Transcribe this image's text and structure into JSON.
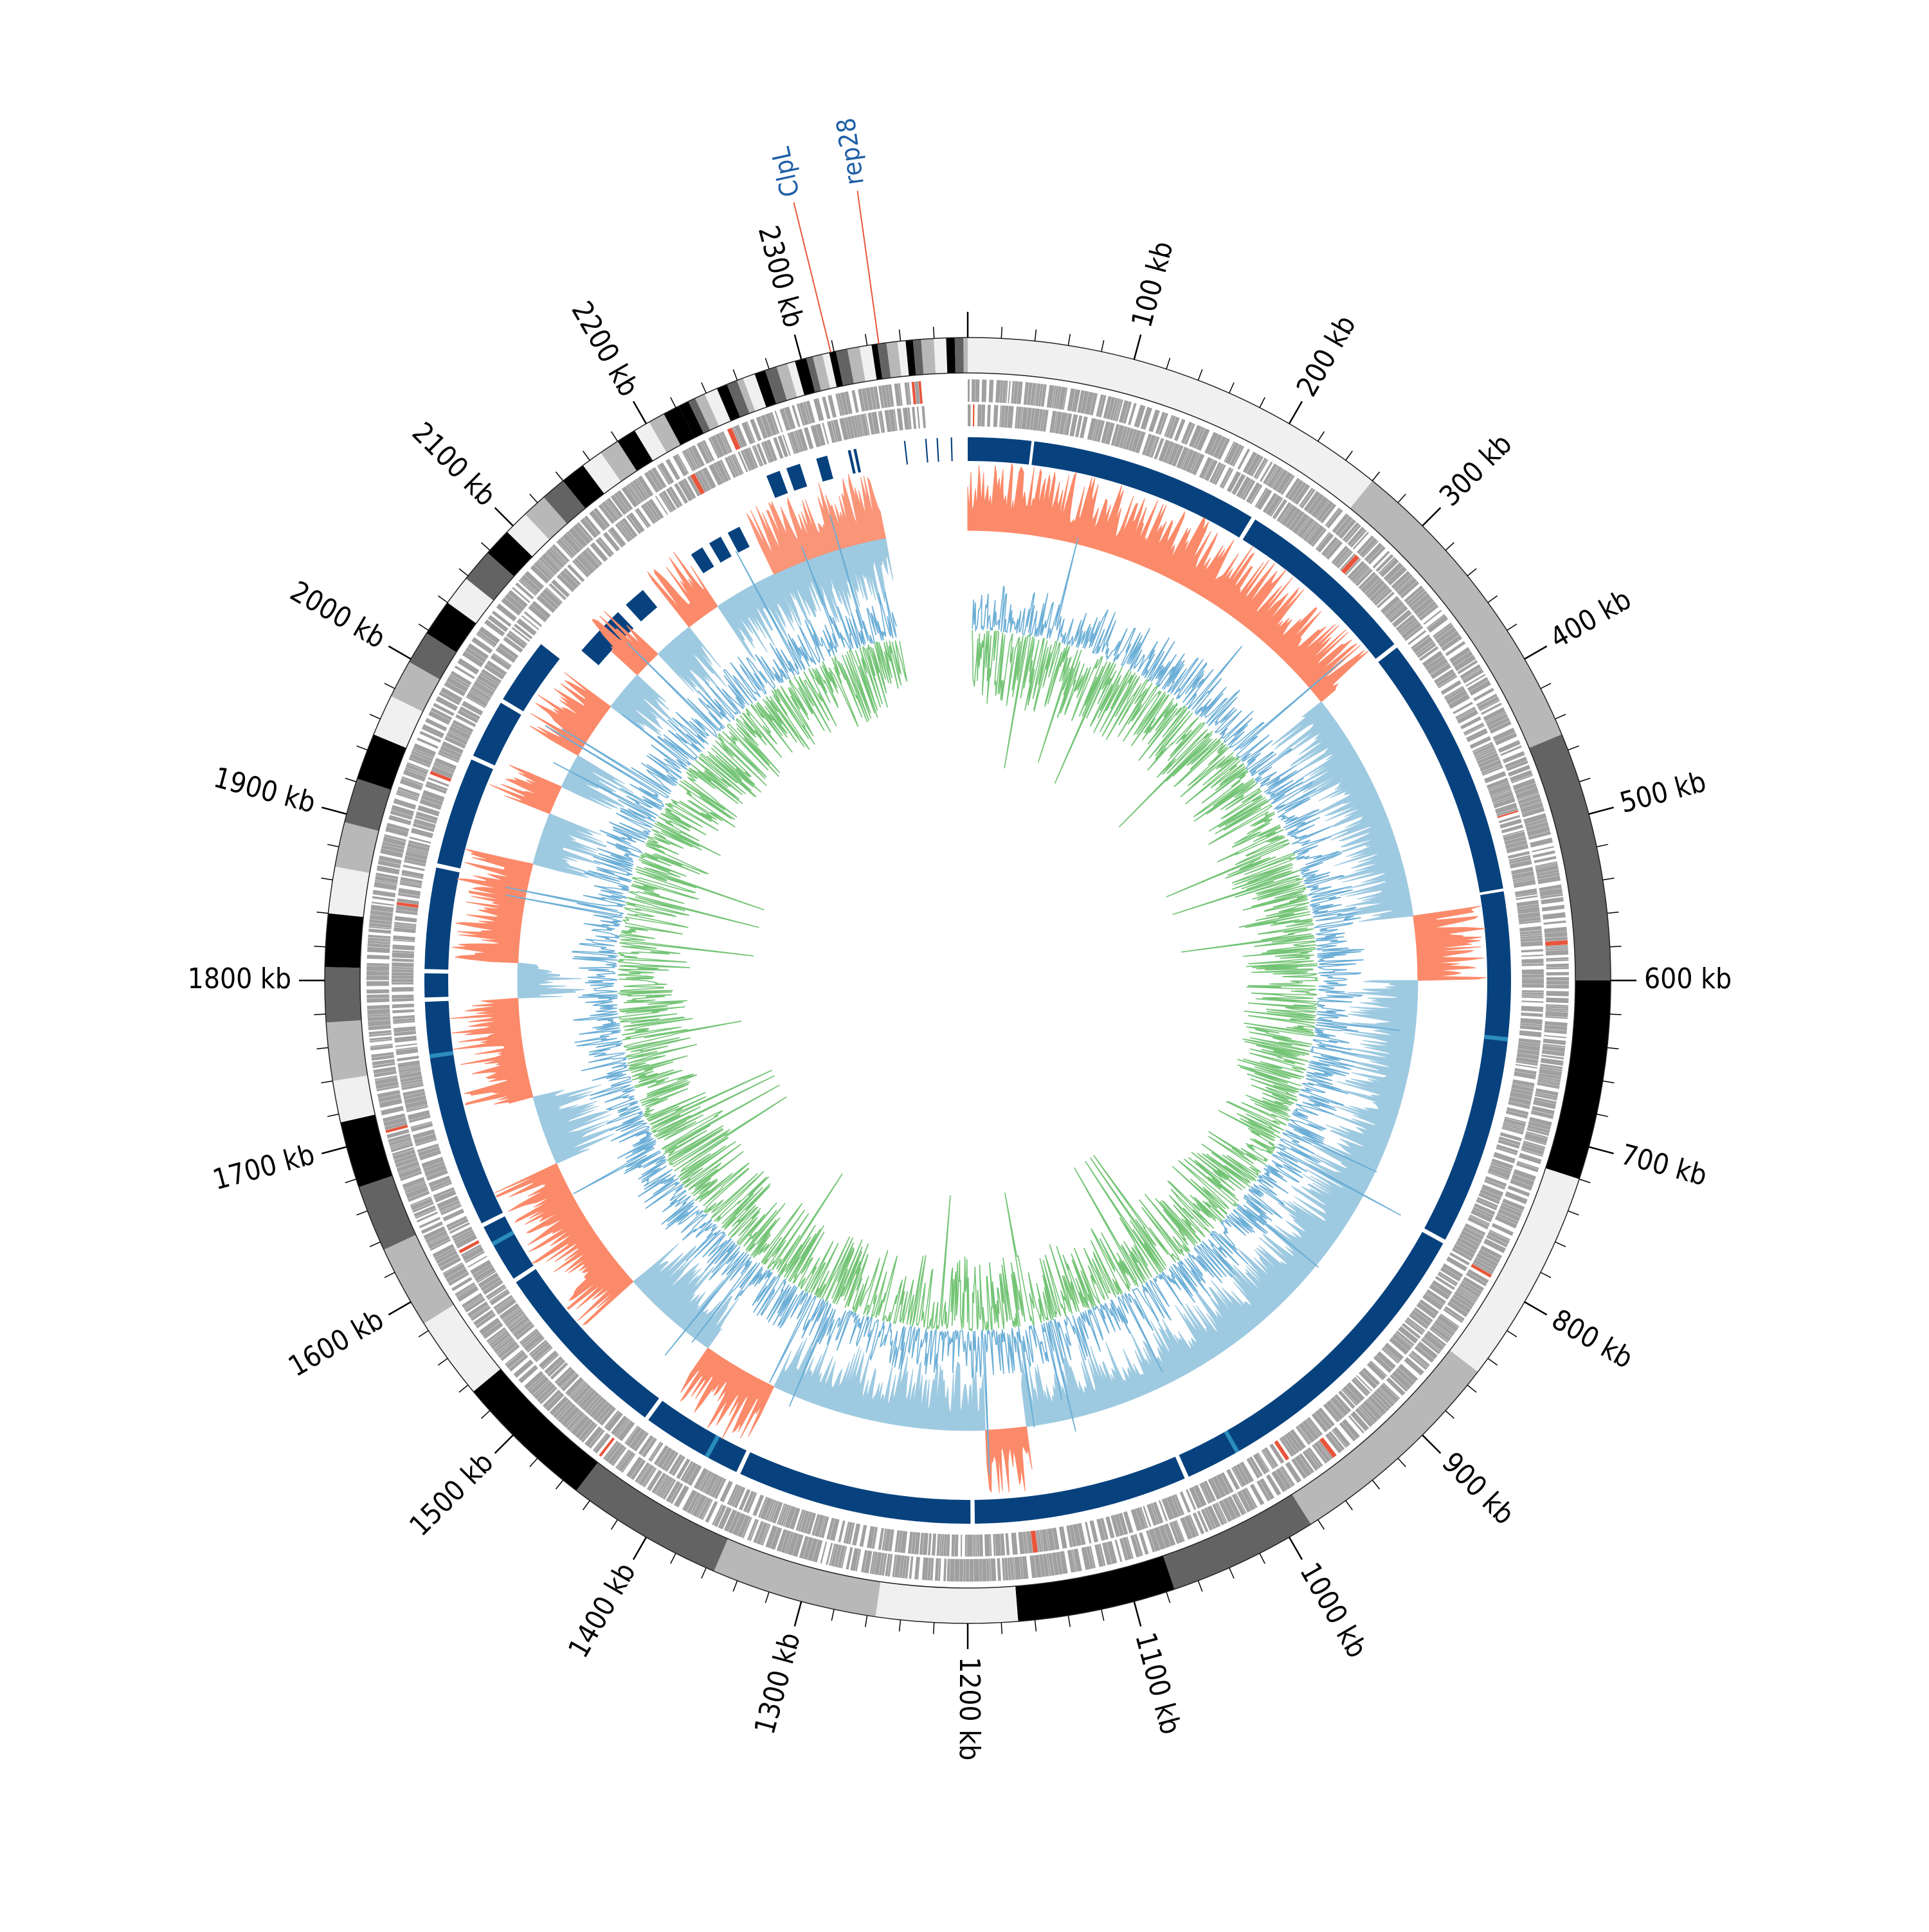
{
  "chart_data": {
    "type": "circos",
    "genome_length_kb": 2400,
    "tick_labels": [
      {
        "kb": 100,
        "label": "100 kb"
      },
      {
        "kb": 200,
        "label": "200 kb"
      },
      {
        "kb": 300,
        "label": "300 kb"
      },
      {
        "kb": 400,
        "label": "400 kb"
      },
      {
        "kb": 500,
        "label": "500 kb"
      },
      {
        "kb": 600,
        "label": "600 kb"
      },
      {
        "kb": 700,
        "label": "700 kb"
      },
      {
        "kb": 800,
        "label": "800 kb"
      },
      {
        "kb": 900,
        "label": "900 kb"
      },
      {
        "kb": 1000,
        "label": "1000 kb"
      },
      {
        "kb": 1100,
        "label": "1100 kb"
      },
      {
        "kb": 1200,
        "label": "1200 kb"
      },
      {
        "kb": 1300,
        "label": "1300 kb"
      },
      {
        "kb": 1400,
        "label": "1400 kb"
      },
      {
        "kb": 1500,
        "label": "1500 kb"
      },
      {
        "kb": 1600,
        "label": "1600 kb"
      },
      {
        "kb": 1700,
        "label": "1700 kb"
      },
      {
        "kb": 1800,
        "label": "1800 kb"
      },
      {
        "kb": 1900,
        "label": "1900 kb"
      },
      {
        "kb": 2000,
        "label": "2000 kb"
      },
      {
        "kb": 2100,
        "label": "2100 kb"
      },
      {
        "kb": 2200,
        "label": "2200 kb"
      },
      {
        "kb": 2300,
        "label": "2300 kb"
      }
    ],
    "ideogram_bands": [
      {
        "start": 0,
        "end": 200,
        "color": "#f0f0f0"
      },
      {
        "start": 200,
        "end": 260,
        "color": "#f0f0f0"
      },
      {
        "start": 260,
        "end": 450,
        "color": "#b8b8b8"
      },
      {
        "start": 450,
        "end": 600,
        "color": "#636363"
      },
      {
        "start": 600,
        "end": 720,
        "color": "#000000"
      },
      {
        "start": 720,
        "end": 850,
        "color": "#f0f0f0"
      },
      {
        "start": 850,
        "end": 985,
        "color": "#b8b8b8"
      },
      {
        "start": 985,
        "end": 1075,
        "color": "#636363"
      },
      {
        "start": 1075,
        "end": 1170,
        "color": "#000000"
      },
      {
        "start": 1170,
        "end": 1255,
        "color": "#f0f0f0"
      },
      {
        "start": 1255,
        "end": 1355,
        "color": "#b8b8b8"
      },
      {
        "start": 1355,
        "end": 1450,
        "color": "#636363"
      },
      {
        "start": 1450,
        "end": 1535,
        "color": "#000000"
      },
      {
        "start": 1535,
        "end": 1585,
        "color": "#f0f0f0"
      },
      {
        "start": 1585,
        "end": 1635,
        "color": "#b8b8b8"
      },
      {
        "start": 1635,
        "end": 1675,
        "color": "#636363"
      },
      {
        "start": 1675,
        "end": 1715,
        "color": "#000000"
      },
      {
        "start": 1715,
        "end": 1740,
        "color": "#f0f0f0"
      },
      {
        "start": 1740,
        "end": 1775,
        "color": "#b8b8b8"
      },
      {
        "start": 1775,
        "end": 1808,
        "color": "#636363"
      },
      {
        "start": 1808,
        "end": 1840,
        "color": "#000000"
      },
      {
        "start": 1840,
        "end": 1868,
        "color": "#f0f0f0"
      },
      {
        "start": 1868,
        "end": 1895,
        "color": "#b8b8b8"
      },
      {
        "start": 1895,
        "end": 1922,
        "color": "#636363"
      },
      {
        "start": 1922,
        "end": 1950,
        "color": "#000000"
      },
      {
        "start": 1950,
        "end": 1975,
        "color": "#f0f0f0"
      },
      {
        "start": 1975,
        "end": 1998,
        "color": "#b8b8b8"
      },
      {
        "start": 1998,
        "end": 2018,
        "color": "#636363"
      },
      {
        "start": 2018,
        "end": 2040,
        "color": "#000000"
      },
      {
        "start": 2040,
        "end": 2058,
        "color": "#f0f0f0"
      },
      {
        "start": 2058,
        "end": 2078,
        "color": "#636363"
      },
      {
        "start": 2078,
        "end": 2095,
        "color": "#000000"
      },
      {
        "start": 2095,
        "end": 2110,
        "color": "#f0f0f0"
      },
      {
        "start": 2110,
        "end": 2125,
        "color": "#b8b8b8"
      },
      {
        "start": 2125,
        "end": 2140,
        "color": "#636363"
      },
      {
        "start": 2140,
        "end": 2155,
        "color": "#000000"
      },
      {
        "start": 2155,
        "end": 2168,
        "color": "#f0f0f0"
      },
      {
        "start": 2168,
        "end": 2180,
        "color": "#b8b8b8"
      },
      {
        "start": 2180,
        "end": 2192,
        "color": "#000000"
      },
      {
        "start": 2192,
        "end": 2202,
        "color": "#f0f0f0"
      },
      {
        "start": 2202,
        "end": 2212,
        "color": "#b8b8b8"
      },
      {
        "start": 2212,
        "end": 2222,
        "color": "#000000"
      }
    ],
    "ideogram_stripe_region": {
      "start": 2222,
      "end": 2400,
      "colors": [
        "#000000",
        "#636363",
        "#b8b8b8",
        "#f0f0f0"
      ]
    },
    "gene_label_marks": [
      {
        "kb": 2318,
        "label": "ClpL",
        "color": "#1f5fa6",
        "line_color": "#e8553c"
      },
      {
        "kb": 2347,
        "label": "rep28",
        "color": "#1f5fa6",
        "line_color": "#e8553c"
      }
    ],
    "alignment_blocks": [
      {
        "start": 0,
        "end": 45
      },
      {
        "start": 47,
        "end": 210
      },
      {
        "start": 213,
        "end": 345
      },
      {
        "start": 348,
        "end": 535
      },
      {
        "start": 537,
        "end": 790
      },
      {
        "start": 793,
        "end": 1040
      },
      {
        "start": 1043,
        "end": 1195
      },
      {
        "start": 1198,
        "end": 1365
      },
      {
        "start": 1368,
        "end": 1440
      },
      {
        "start": 1443,
        "end": 1575
      },
      {
        "start": 1578,
        "end": 1620
      },
      {
        "start": 1623,
        "end": 1785
      },
      {
        "start": 1788,
        "end": 1805
      },
      {
        "start": 1808,
        "end": 1880
      },
      {
        "start": 1883,
        "end": 1960
      },
      {
        "start": 1963,
        "end": 2005
      },
      {
        "start": 2008,
        "end": 2055
      }
    ],
    "alignment_blocks_outer_tail": [
      {
        "start": 2255,
        "end": 2265
      },
      {
        "start": 2270,
        "end": 2280
      },
      {
        "start": 2292,
        "end": 2300
      },
      {
        "start": 2315,
        "end": 2317
      },
      {
        "start": 2319,
        "end": 2321
      },
      {
        "start": 2355,
        "end": 2356
      },
      {
        "start": 2370,
        "end": 2371
      },
      {
        "start": 2378,
        "end": 2379
      },
      {
        "start": 2388,
        "end": 2389
      }
    ],
    "alignment_blocks_inner_tail": [
      {
        "start": 2070,
        "end": 2110
      },
      {
        "start": 2118,
        "end": 2135
      },
      {
        "start": 2180,
        "end": 2190
      },
      {
        "start": 2196,
        "end": 2206
      },
      {
        "start": 2212,
        "end": 2222
      }
    ],
    "skew_track": {
      "positive_color": "#fb8a6a",
      "negative_color": "#9ecae1",
      "segments": [
        {
          "start": 0,
          "end": 345,
          "sign": "positive"
        },
        {
          "start": 345,
          "end": 545,
          "sign": "negative"
        },
        {
          "start": 545,
          "end": 600,
          "sign": "positive"
        },
        {
          "start": 600,
          "end": 1150,
          "sign": "negative"
        },
        {
          "start": 1150,
          "end": 1185,
          "sign": "positive"
        },
        {
          "start": 1185,
          "end": 1370,
          "sign": "negative"
        },
        {
          "start": 1370,
          "end": 1435,
          "sign": "positive"
        },
        {
          "start": 1435,
          "end": 1520,
          "sign": "negative"
        },
        {
          "start": 1520,
          "end": 1640,
          "sign": "positive"
        },
        {
          "start": 1640,
          "end": 1700,
          "sign": "negative"
        },
        {
          "start": 1700,
          "end": 1785,
          "sign": "positive"
        },
        {
          "start": 1785,
          "end": 1815,
          "sign": "negative"
        },
        {
          "start": 1815,
          "end": 1900,
          "sign": "positive"
        },
        {
          "start": 1900,
          "end": 1945,
          "sign": "negative"
        },
        {
          "start": 1945,
          "end": 1970,
          "sign": "positive"
        },
        {
          "start": 1970,
          "end": 2000,
          "sign": "negative"
        },
        {
          "start": 2000,
          "end": 2050,
          "sign": "positive"
        },
        {
          "start": 2050,
          "end": 2085,
          "sign": "negative"
        },
        {
          "start": 2085,
          "end": 2110,
          "sign": "positive"
        },
        {
          "start": 2110,
          "end": 2145,
          "sign": "negative"
        },
        {
          "start": 2145,
          "end": 2175,
          "sign": "positive"
        },
        {
          "start": 2175,
          "end": 2230,
          "sign": "negative"
        },
        {
          "start": 2230,
          "end": 2330,
          "sign": "mixed"
        }
      ]
    },
    "gc_track": {
      "color_out": "#6baed6",
      "color_in": "#74c476"
    },
    "gap": {
      "start": 2330,
      "end": 2400
    },
    "colors": {
      "ideogram_outline": "#000000",
      "gene_forward": "#a0a0a0",
      "gene_reverse": "#a0a0a0",
      "gene_highlight": "#e8553c",
      "alignment": "#08427e",
      "alignment_highlight": "#2b8cbe"
    }
  }
}
